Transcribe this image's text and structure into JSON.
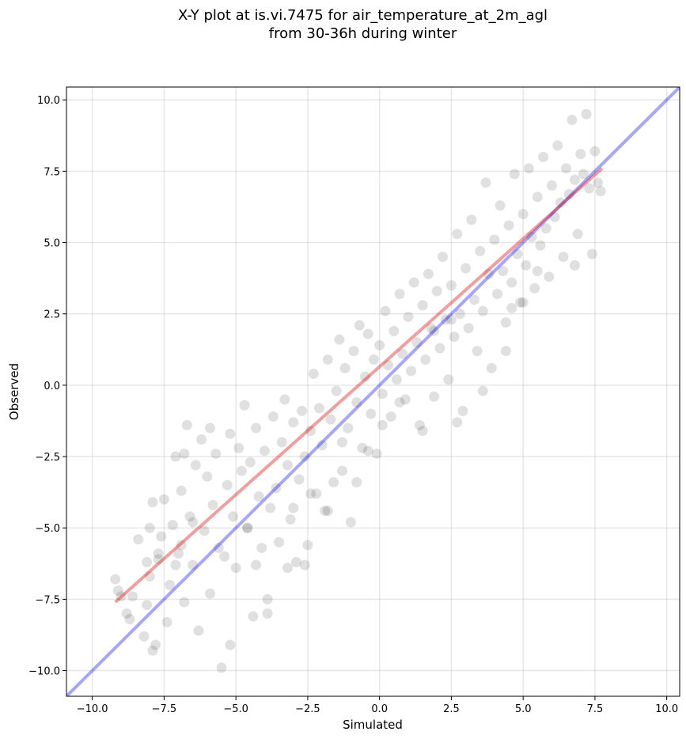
{
  "chart_data": {
    "type": "scatter",
    "title": "X-Y plot at is.vi.7475 for air_temperature_at_2m_agl",
    "subtitle": "from 30-36h during winter",
    "xlabel": "Simulated",
    "ylabel": "Observed",
    "xlim": [
      -10.9,
      10.45
    ],
    "ylim": [
      -10.9,
      10.45
    ],
    "xticks": [
      -10.0,
      -7.5,
      -5.0,
      -2.5,
      0.0,
      2.5,
      5.0,
      7.5,
      10.0
    ],
    "yticks": [
      -10.0,
      -7.5,
      -5.0,
      -2.5,
      0.0,
      2.5,
      5.0,
      7.5,
      10.0
    ],
    "tick_labels": [
      "−10.0",
      "−7.5",
      "−5.0",
      "−2.5",
      "0.0",
      "2.5",
      "5.0",
      "7.5",
      "10.0"
    ],
    "grid": true,
    "series": [
      {
        "kind": "points",
        "color": "#000000",
        "opacity": 0.12,
        "values": [
          [
            -9.2,
            -6.8
          ],
          [
            -9.1,
            -7.2
          ],
          [
            -8.8,
            -8.0
          ],
          [
            -8.6,
            -7.4
          ],
          [
            -8.4,
            -5.4
          ],
          [
            -8.2,
            -8.8
          ],
          [
            -8.1,
            -7.7
          ],
          [
            -8.0,
            -6.7
          ],
          [
            -7.9,
            -4.1
          ],
          [
            -7.8,
            -9.1
          ],
          [
            -7.7,
            -6.1
          ],
          [
            -7.6,
            -5.3
          ],
          [
            -7.5,
            -4.0
          ],
          [
            -7.4,
            -8.3
          ],
          [
            -7.3,
            -7.0
          ],
          [
            -7.2,
            -4.9
          ],
          [
            -7.1,
            -2.5
          ],
          [
            -7.0,
            -5.9
          ],
          [
            -6.9,
            -3.7
          ],
          [
            -6.8,
            -7.6
          ],
          [
            -6.7,
            -1.4
          ],
          [
            -6.6,
            -4.6
          ],
          [
            -6.5,
            -6.3
          ],
          [
            -6.4,
            -2.8
          ],
          [
            -6.3,
            -8.6
          ],
          [
            -6.2,
            -1.9
          ],
          [
            -6.1,
            -5.1
          ],
          [
            -6.0,
            -3.2
          ],
          [
            -5.9,
            -7.3
          ],
          [
            -5.8,
            -4.2
          ],
          [
            -5.7,
            -2.4
          ],
          [
            -5.6,
            -5.7
          ],
          [
            -5.5,
            -9.9
          ],
          [
            -5.4,
            -6.0
          ],
          [
            -5.3,
            -3.5
          ],
          [
            -5.2,
            -1.7
          ],
          [
            -5.1,
            -4.6
          ],
          [
            -5.0,
            -6.4
          ],
          [
            -4.9,
            -2.2
          ],
          [
            -4.8,
            -3.0
          ],
          [
            -4.7,
            -0.7
          ],
          [
            -4.6,
            -5.0
          ],
          [
            -4.5,
            -2.7
          ],
          [
            -4.4,
            -8.1
          ],
          [
            -4.3,
            -1.5
          ],
          [
            -4.2,
            -3.9
          ],
          [
            -4.1,
            -5.7
          ],
          [
            -4.0,
            -2.3
          ],
          [
            -3.9,
            -7.5
          ],
          [
            -3.8,
            -4.3
          ],
          [
            -3.7,
            -1.1
          ],
          [
            -3.6,
            -3.6
          ],
          [
            -3.5,
            -5.5
          ],
          [
            -3.4,
            -2.0
          ],
          [
            -3.3,
            -0.5
          ],
          [
            -3.2,
            -2.8
          ],
          [
            -3.1,
            -4.7
          ],
          [
            -3.0,
            -1.3
          ],
          [
            -2.9,
            -6.2
          ],
          [
            -2.8,
            -3.3
          ],
          [
            -2.7,
            -0.9
          ],
          [
            -2.6,
            -2.5
          ],
          [
            -2.5,
            -5.6
          ],
          [
            -2.4,
            -1.6
          ],
          [
            -2.3,
            0.4
          ],
          [
            -2.2,
            -3.8
          ],
          [
            -2.1,
            -0.8
          ],
          [
            -2.0,
            -2.1
          ],
          [
            -1.9,
            -4.4
          ],
          [
            -1.8,
            0.9
          ],
          [
            -1.7,
            -1.2
          ],
          [
            -1.6,
            -3.4
          ],
          [
            -1.5,
            -0.2
          ],
          [
            -1.4,
            1.6
          ],
          [
            -1.3,
            -2.0
          ],
          [
            -1.2,
            0.6
          ],
          [
            -1.1,
            -1.5
          ],
          [
            -1.0,
            -4.8
          ],
          [
            -0.9,
            1.2
          ],
          [
            -0.8,
            -0.6
          ],
          [
            -0.7,
            2.1
          ],
          [
            -0.6,
            -2.2
          ],
          [
            -0.5,
            0.3
          ],
          [
            -0.4,
            1.8
          ],
          [
            -0.3,
            -1.0
          ],
          [
            -0.2,
            0.9
          ],
          [
            -0.1,
            -2.4
          ],
          [
            0.0,
            1.4
          ],
          [
            0.1,
            -0.3
          ],
          [
            0.2,
            2.6
          ],
          [
            0.3,
            0.7
          ],
          [
            0.4,
            -1.1
          ],
          [
            0.5,
            1.9
          ],
          [
            0.6,
            0.2
          ],
          [
            0.7,
            3.2
          ],
          [
            0.8,
            1.1
          ],
          [
            0.9,
            -0.5
          ],
          [
            1.0,
            2.4
          ],
          [
            1.1,
            0.5
          ],
          [
            1.2,
            3.6
          ],
          [
            1.3,
            1.5
          ],
          [
            1.4,
            -1.4
          ],
          [
            1.5,
            2.8
          ],
          [
            1.6,
            0.9
          ],
          [
            1.7,
            3.9
          ],
          [
            1.8,
            2.0
          ],
          [
            1.9,
            -0.4
          ],
          [
            2.0,
            3.3
          ],
          [
            2.1,
            1.3
          ],
          [
            2.2,
            4.5
          ],
          [
            2.3,
            2.3
          ],
          [
            2.4,
            0.2
          ],
          [
            2.5,
            3.5
          ],
          [
            2.6,
            1.7
          ],
          [
            2.7,
            5.3
          ],
          [
            2.8,
            2.5
          ],
          [
            2.9,
            -0.9
          ],
          [
            3.0,
            4.1
          ],
          [
            3.1,
            2.0
          ],
          [
            3.2,
            5.8
          ],
          [
            3.3,
            3.0
          ],
          [
            3.4,
            1.2
          ],
          [
            3.5,
            4.7
          ],
          [
            3.6,
            2.6
          ],
          [
            3.7,
            7.1
          ],
          [
            3.8,
            3.9
          ],
          [
            3.9,
            0.6
          ],
          [
            4.0,
            5.1
          ],
          [
            4.1,
            3.2
          ],
          [
            4.2,
            6.3
          ],
          [
            4.3,
            4.0
          ],
          [
            4.4,
            2.2
          ],
          [
            4.5,
            5.6
          ],
          [
            4.6,
            3.6
          ],
          [
            4.7,
            7.4
          ],
          [
            4.8,
            4.6
          ],
          [
            4.9,
            2.9
          ],
          [
            5.0,
            6.0
          ],
          [
            5.1,
            4.2
          ],
          [
            5.2,
            7.6
          ],
          [
            5.3,
            5.2
          ],
          [
            5.4,
            3.4
          ],
          [
            5.5,
            6.6
          ],
          [
            5.6,
            4.9
          ],
          [
            5.7,
            8.0
          ],
          [
            5.8,
            5.5
          ],
          [
            5.9,
            3.8
          ],
          [
            6.0,
            7.0
          ],
          [
            6.1,
            5.9
          ],
          [
            6.2,
            8.4
          ],
          [
            6.3,
            6.4
          ],
          [
            6.4,
            4.5
          ],
          [
            6.5,
            7.6
          ],
          [
            6.6,
            6.7
          ],
          [
            6.7,
            9.3
          ],
          [
            6.8,
            7.2
          ],
          [
            6.9,
            5.3
          ],
          [
            7.0,
            8.1
          ],
          [
            7.1,
            7.4
          ],
          [
            7.2,
            9.5
          ],
          [
            7.3,
            6.9
          ],
          [
            7.4,
            4.6
          ],
          [
            7.5,
            8.2
          ],
          [
            7.6,
            7.1
          ],
          [
            7.7,
            6.8
          ],
          [
            6.8,
            4.2
          ],
          [
            5.5,
            4.0
          ],
          [
            4.6,
            2.7
          ],
          [
            1.9,
            1.9
          ],
          [
            2.5,
            2.3
          ],
          [
            -5.9,
            -1.5
          ],
          [
            -6.8,
            -2.4
          ],
          [
            -3.2,
            -6.4
          ],
          [
            -2.6,
            -6.3
          ],
          [
            -8.7,
            -8.2
          ],
          [
            -7.9,
            -9.3
          ],
          [
            -9.0,
            -7.4
          ],
          [
            -5.2,
            -9.1
          ],
          [
            -3.9,
            -8.0
          ],
          [
            -1.8,
            -4.4
          ],
          [
            0.1,
            -1.4
          ],
          [
            1.5,
            -1.6
          ],
          [
            2.7,
            -1.3
          ],
          [
            3.6,
            -0.2
          ],
          [
            4.4,
            1.2
          ],
          [
            5.0,
            2.9
          ],
          [
            -0.8,
            -3.4
          ],
          [
            -1.3,
            -3.0
          ],
          [
            -0.4,
            -2.3
          ],
          [
            0.7,
            -0.6
          ],
          [
            -2.4,
            -3.8
          ],
          [
            -3.0,
            -4.3
          ],
          [
            -4.3,
            -6.3
          ],
          [
            -4.6,
            -5.0
          ],
          [
            -6.9,
            -5.6
          ],
          [
            -7.1,
            -6.3
          ],
          [
            -7.7,
            -5.9
          ],
          [
            -8.0,
            -5.0
          ],
          [
            -8.1,
            -6.2
          ],
          [
            -6.5,
            -4.8
          ]
        ]
      }
    ],
    "lines": [
      {
        "name": "",
        "color": "#0000ff",
        "x": [
          -10.9,
          10.45
        ],
        "y": [
          -10.9,
          10.45
        ]
      },
      {
        "name": "",
        "color": "#e00000",
        "x": [
          -9.2,
          7.75
        ],
        "y": [
          -7.6,
          7.6
        ]
      }
    ]
  }
}
